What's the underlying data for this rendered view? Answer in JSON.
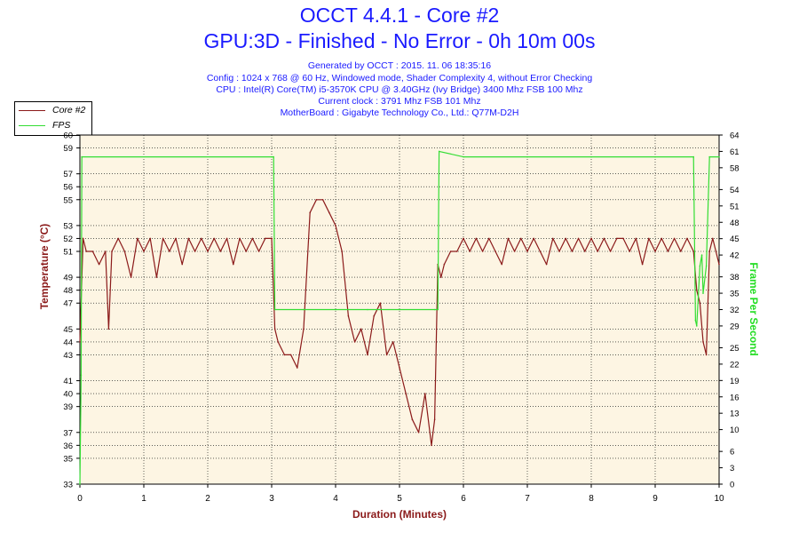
{
  "header": {
    "title": "OCCT 4.4.1 - Core #2",
    "subtitle": "GPU:3D - Finished - No Error - 0h 10m 00s",
    "info_lines": [
      "Generated by OCCT : 2015. 11. 06 18:35:16",
      "Config : 1024 x 768 @ 60 Hz, Windowed mode, Shader Complexity 4, without Error Checking",
      "CPU : Intel(R) Core(TM) i5-3570K CPU @ 3.40GHz (Ivy Bridge) 3400 Mhz FSB 100 Mhz",
      "Current clock : 3791 Mhz FSB 101 Mhz",
      "MotherBoard : Gigabyte Technology Co., Ltd.: Q77M-D2H"
    ]
  },
  "legend": {
    "core_label": "Core #2",
    "fps_label": "FPS"
  },
  "colors": {
    "temperature": "#8b1a1a",
    "fps": "#33dd33",
    "plot_bg": "#fdf5e3",
    "title": "#1a1aff"
  },
  "chart_data": {
    "type": "line",
    "xlabel": "Duration (Minutes)",
    "ylabel_left": "Temperature (°C)",
    "ylabel_right": "Frame Per Second",
    "xlim": [
      0,
      10
    ],
    "ylim_left": [
      33,
      60
    ],
    "ylim_right": [
      0,
      64
    ],
    "x_ticks": [
      "0",
      "1",
      "2",
      "3",
      "4",
      "5",
      "6",
      "7",
      "8",
      "9",
      "10"
    ],
    "y_left_ticks": [
      33,
      35,
      36,
      37,
      39,
      40,
      41,
      43,
      44,
      45,
      47,
      48,
      49,
      51,
      52,
      53,
      55,
      56,
      57,
      59,
      60
    ],
    "y_left_tick_labels": [
      "33",
      "35",
      "36",
      "37",
      "39",
      "40",
      "41",
      "43",
      "44",
      "45",
      "47",
      "48",
      "49",
      "51",
      "52",
      "53",
      "55",
      "56",
      "57",
      "59",
      "60"
    ],
    "y_right_ticks": [
      0,
      3,
      6,
      10,
      13,
      16,
      19,
      22,
      25,
      29,
      32,
      35,
      38,
      42,
      45,
      48,
      51,
      54,
      58,
      61,
      64
    ],
    "y_right_tick_labels": [
      "0",
      "3",
      "6",
      "10",
      "13",
      "16",
      "19",
      "22",
      "25",
      "29",
      "32",
      "35",
      "38",
      "42",
      "45",
      "48",
      "51",
      "54",
      "58",
      "61",
      "64"
    ],
    "series": [
      {
        "name": "Core #2",
        "axis": "left",
        "x": [
          0.0,
          0.05,
          0.1,
          0.2,
          0.3,
          0.4,
          0.45,
          0.5,
          0.6,
          0.7,
          0.8,
          0.9,
          1.0,
          1.1,
          1.2,
          1.3,
          1.4,
          1.5,
          1.6,
          1.7,
          1.8,
          1.9,
          2.0,
          2.1,
          2.2,
          2.3,
          2.4,
          2.5,
          2.6,
          2.7,
          2.8,
          2.9,
          3.0,
          3.05,
          3.1,
          3.2,
          3.3,
          3.4,
          3.5,
          3.6,
          3.7,
          3.8,
          3.9,
          4.0,
          4.1,
          4.2,
          4.3,
          4.4,
          4.5,
          4.6,
          4.7,
          4.8,
          4.9,
          5.0,
          5.1,
          5.2,
          5.3,
          5.4,
          5.5,
          5.55,
          5.6,
          5.65,
          5.7,
          5.8,
          5.9,
          6.0,
          6.1,
          6.2,
          6.3,
          6.4,
          6.5,
          6.6,
          6.7,
          6.8,
          6.9,
          7.0,
          7.1,
          7.2,
          7.3,
          7.4,
          7.5,
          7.6,
          7.7,
          7.8,
          7.9,
          8.0,
          8.1,
          8.2,
          8.3,
          8.4,
          8.5,
          8.6,
          8.7,
          8.8,
          8.9,
          9.0,
          9.1,
          9.2,
          9.3,
          9.4,
          9.5,
          9.6,
          9.65,
          9.7,
          9.75,
          9.8,
          9.85,
          9.9,
          10.0
        ],
        "values": [
          44,
          52,
          51,
          51,
          50,
          51,
          45,
          51,
          52,
          51,
          49,
          52,
          51,
          52,
          49,
          52,
          51,
          52,
          50,
          52,
          51,
          52,
          51,
          52,
          51,
          52,
          50,
          52,
          51,
          52,
          51,
          52,
          52,
          45,
          44,
          43,
          43,
          42,
          45,
          54,
          55,
          55,
          54,
          53,
          51,
          46,
          44,
          45,
          43,
          46,
          47,
          43,
          44,
          42,
          40,
          38,
          37,
          40,
          36,
          38,
          50,
          49,
          50,
          51,
          51,
          52,
          51,
          52,
          51,
          52,
          51,
          50,
          52,
          51,
          52,
          51,
          52,
          51,
          50,
          52,
          51,
          52,
          51,
          52,
          51,
          52,
          51,
          52,
          51,
          52,
          52,
          51,
          52,
          50,
          52,
          51,
          52,
          51,
          52,
          51,
          52,
          51,
          48,
          47,
          44,
          43,
          51,
          52,
          50
        ]
      },
      {
        "name": "FPS",
        "axis": "right",
        "x": [
          0.0,
          0.02,
          0.03,
          3.0,
          3.03,
          3.05,
          3.5,
          4.0,
          4.5,
          5.0,
          5.55,
          5.6,
          5.62,
          6.0,
          7.0,
          8.0,
          9.0,
          9.6,
          9.63,
          9.65,
          9.7,
          9.73,
          9.75,
          9.8,
          9.85,
          10.0
        ],
        "values": [
          0,
          20,
          60,
          60,
          60,
          32,
          32,
          32,
          32,
          32,
          32,
          32,
          61,
          60,
          60,
          60,
          60,
          60,
          30,
          29,
          40,
          42,
          35,
          40,
          60,
          60
        ]
      }
    ]
  }
}
